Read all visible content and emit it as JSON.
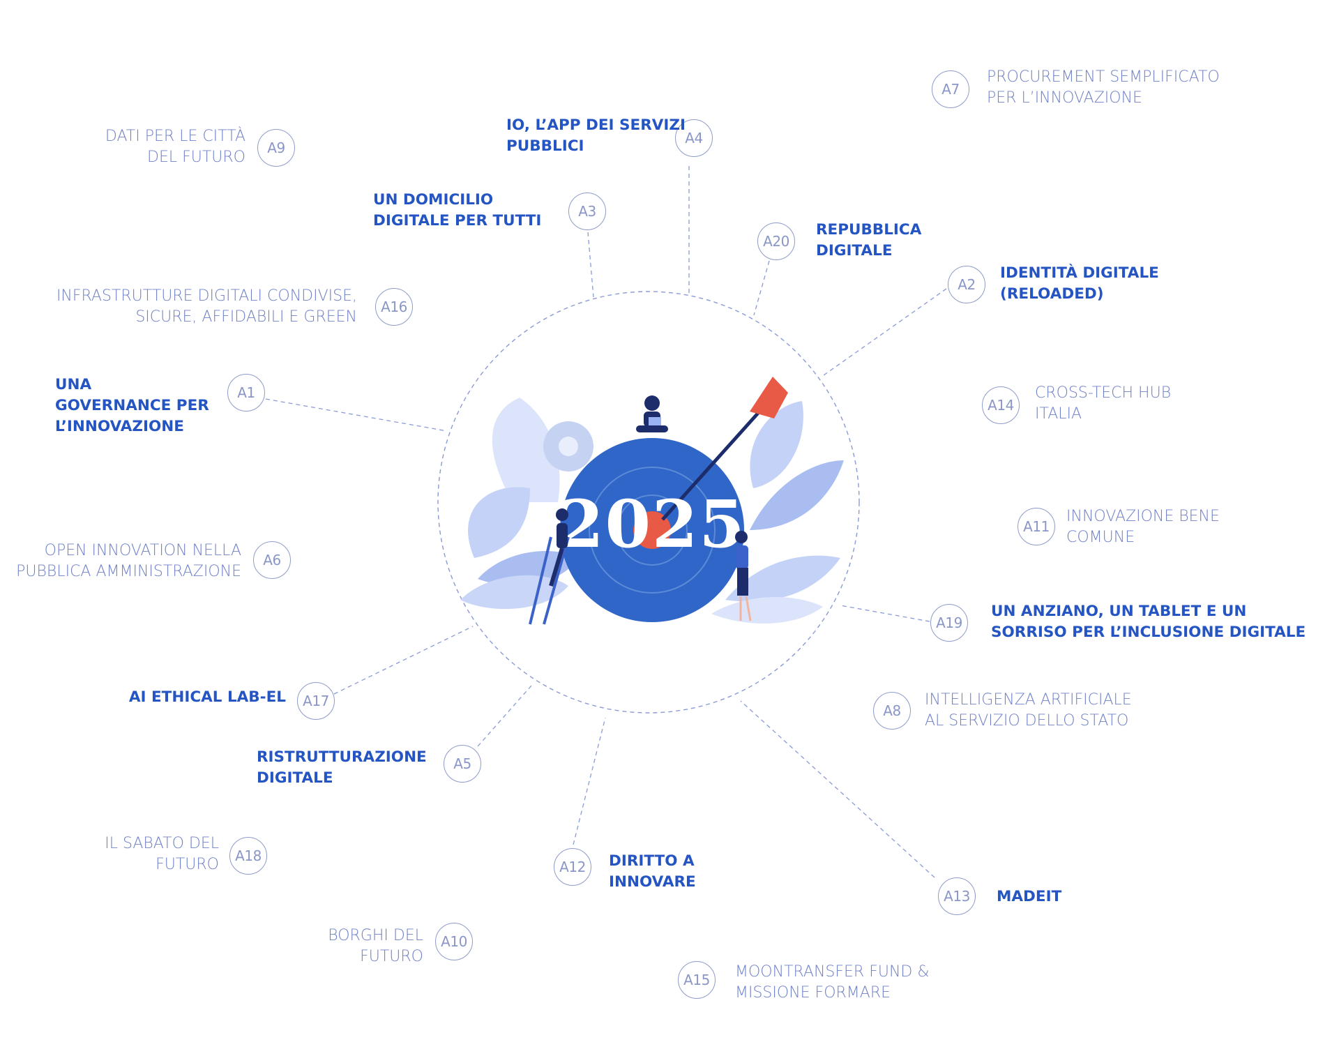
{
  "hub": {
    "year": "2025"
  },
  "colors": {
    "accent": "#2455c3",
    "light_text": "#6f80c8",
    "badge_border": "#8e9bc9",
    "target": "#2f66c7",
    "bullseye": "#e85a45",
    "leaves": "#a9bdf0"
  },
  "actions": [
    {
      "code": "A9",
      "style": "light",
      "lines": [
        "DATI PER LE CITTÀ",
        "DEL FUTURO"
      ]
    },
    {
      "code": "A4",
      "style": "bold",
      "lines": [
        "IO, L’APP DEI SERVIZI",
        "PUBBLICI"
      ]
    },
    {
      "code": "A7",
      "style": "light",
      "lines": [
        "PROCUREMENT SEMPLIFICATO",
        "PER L’INNOVAZIONE"
      ]
    },
    {
      "code": "A3",
      "style": "bold",
      "lines": [
        "UN DOMICILIO",
        "DIGITALE PER TUTTI"
      ]
    },
    {
      "code": "A20",
      "style": "bold",
      "lines": [
        "REPUBBLICA",
        "DIGITALE"
      ]
    },
    {
      "code": "A2",
      "style": "bold",
      "lines": [
        "IDENTITÀ DIGITALE",
        "(RELOADED)"
      ]
    },
    {
      "code": "A16",
      "style": "light",
      "lines": [
        "INFRASTRUTTURE DIGITALI CONDIVISE,",
        "SICURE, AFFIDABILI E GREEN"
      ]
    },
    {
      "code": "A1",
      "style": "bold",
      "lines": [
        "UNA",
        "GOVERNANCE PER",
        "L’INNOVAZIONE"
      ]
    },
    {
      "code": "A14",
      "style": "light",
      "lines": [
        "CROSS-TECH HUB",
        "ITALIA"
      ]
    },
    {
      "code": "A11",
      "style": "light",
      "lines": [
        "INNOVAZIONE BENE",
        "COMUNE"
      ]
    },
    {
      "code": "A6",
      "style": "light",
      "lines": [
        "OPEN INNOVATION NELLA",
        "PUBBLICA AMMINISTRAZIONE"
      ]
    },
    {
      "code": "A19",
      "style": "bold",
      "lines": [
        "UN ANZIANO, UN TABLET E UN",
        "SORRISO PER L’INCLUSIONE DIGITALE"
      ]
    },
    {
      "code": "A17",
      "style": "bold",
      "lines": [
        "AI ETHICAL LAB-EL"
      ]
    },
    {
      "code": "A8",
      "style": "light",
      "lines": [
        "INTELLIGENZA ARTIFICIALE",
        "AL SERVIZIO DELLO STATO"
      ]
    },
    {
      "code": "A5",
      "style": "bold",
      "lines": [
        "RISTRUTTURAZIONE",
        "DIGITALE"
      ]
    },
    {
      "code": "A18",
      "style": "light",
      "lines": [
        "IL SABATO DEL",
        "FUTURO"
      ]
    },
    {
      "code": "A12",
      "style": "bold",
      "lines": [
        "DIRITTO A",
        "INNOVARE"
      ]
    },
    {
      "code": "A13",
      "style": "bold",
      "lines": [
        "MADEIT"
      ]
    },
    {
      "code": "A10",
      "style": "light",
      "lines": [
        "BORGHI DEL",
        "FUTURO"
      ]
    },
    {
      "code": "A15",
      "style": "light",
      "lines": [
        "MOONTRANSFER FUND &",
        "MISSIONE FORMARE"
      ]
    }
  ]
}
